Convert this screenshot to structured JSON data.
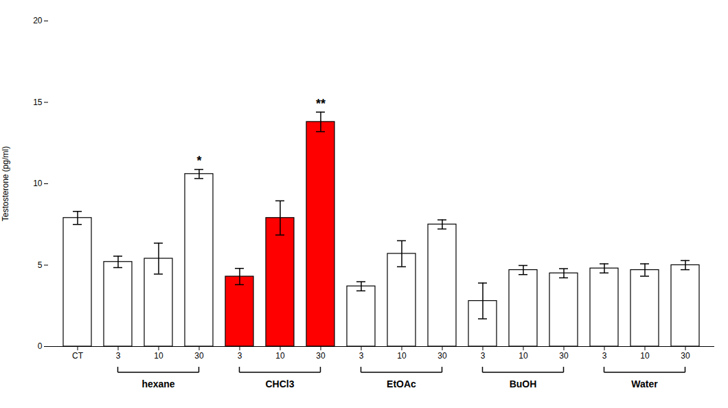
{
  "chart_data": {
    "type": "bar",
    "categories": [
      "CT",
      "3",
      "10",
      "30",
      "3",
      "10",
      "30",
      "3",
      "10",
      "30",
      "3",
      "10",
      "30",
      "3",
      "10",
      "30"
    ],
    "values": [
      7.9,
      5.2,
      5.4,
      10.6,
      4.3,
      7.9,
      13.8,
      3.7,
      5.7,
      7.5,
      2.8,
      4.7,
      4.5,
      4.8,
      4.7,
      5.0
    ],
    "errors": [
      0.4,
      0.35,
      0.95,
      0.28,
      0.5,
      1.05,
      0.6,
      0.28,
      0.8,
      0.28,
      1.1,
      0.28,
      0.28,
      0.28,
      0.38,
      0.28
    ],
    "colors": [
      "white",
      "white",
      "white",
      "white",
      "red",
      "red",
      "red",
      "white",
      "white",
      "white",
      "white",
      "white",
      "white",
      "white",
      "white",
      "white"
    ],
    "ylabel": "Testosterone (pg/ml)",
    "ylim": [
      0,
      20
    ],
    "yticks": [
      0,
      5,
      10,
      15,
      20
    ],
    "groups": [
      {
        "start": 1,
        "end": 3,
        "label": "hexane"
      },
      {
        "start": 4,
        "end": 6,
        "label": "CHCl3"
      },
      {
        "start": 7,
        "end": 9,
        "label": "EtOAc"
      },
      {
        "start": 10,
        "end": 12,
        "label": "BuOH"
      },
      {
        "start": 13,
        "end": 15,
        "label": "Water"
      }
    ],
    "annotations": [
      {
        "index": 3,
        "text": "*"
      },
      {
        "index": 6,
        "text": "**"
      }
    ]
  }
}
